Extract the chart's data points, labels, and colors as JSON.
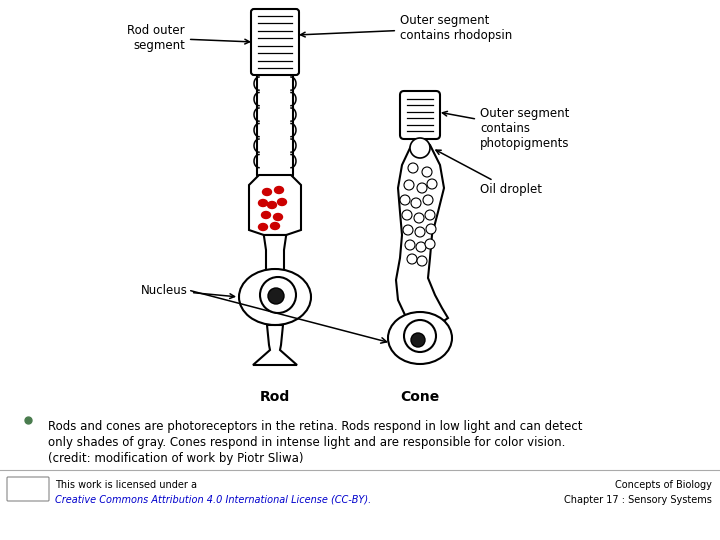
{
  "background_color": "#ffffff",
  "fig_width": 7.2,
  "fig_height": 5.4,
  "bullet_text_lines": [
    "Rods and cones are photoreceptors in the retina. Rods respond in low light and can detect",
    "only shades of gray. Cones respond in intense light and are responsible for color vision.",
    "(credit: modification of work by Piotr Sliwa)"
  ],
  "bullet_color": "#4a7c4e",
  "text_color": "#000000",
  "footer_left_line1": "This work is licensed under a",
  "footer_left_line2": "Creative Commons Attribution 4.0 International License (CC-BY).",
  "footer_right_line1": "Concepts of Biology",
  "footer_right_line2": "Chapter 17 : Sensory Systems",
  "footer_link_color": "#0000cc"
}
